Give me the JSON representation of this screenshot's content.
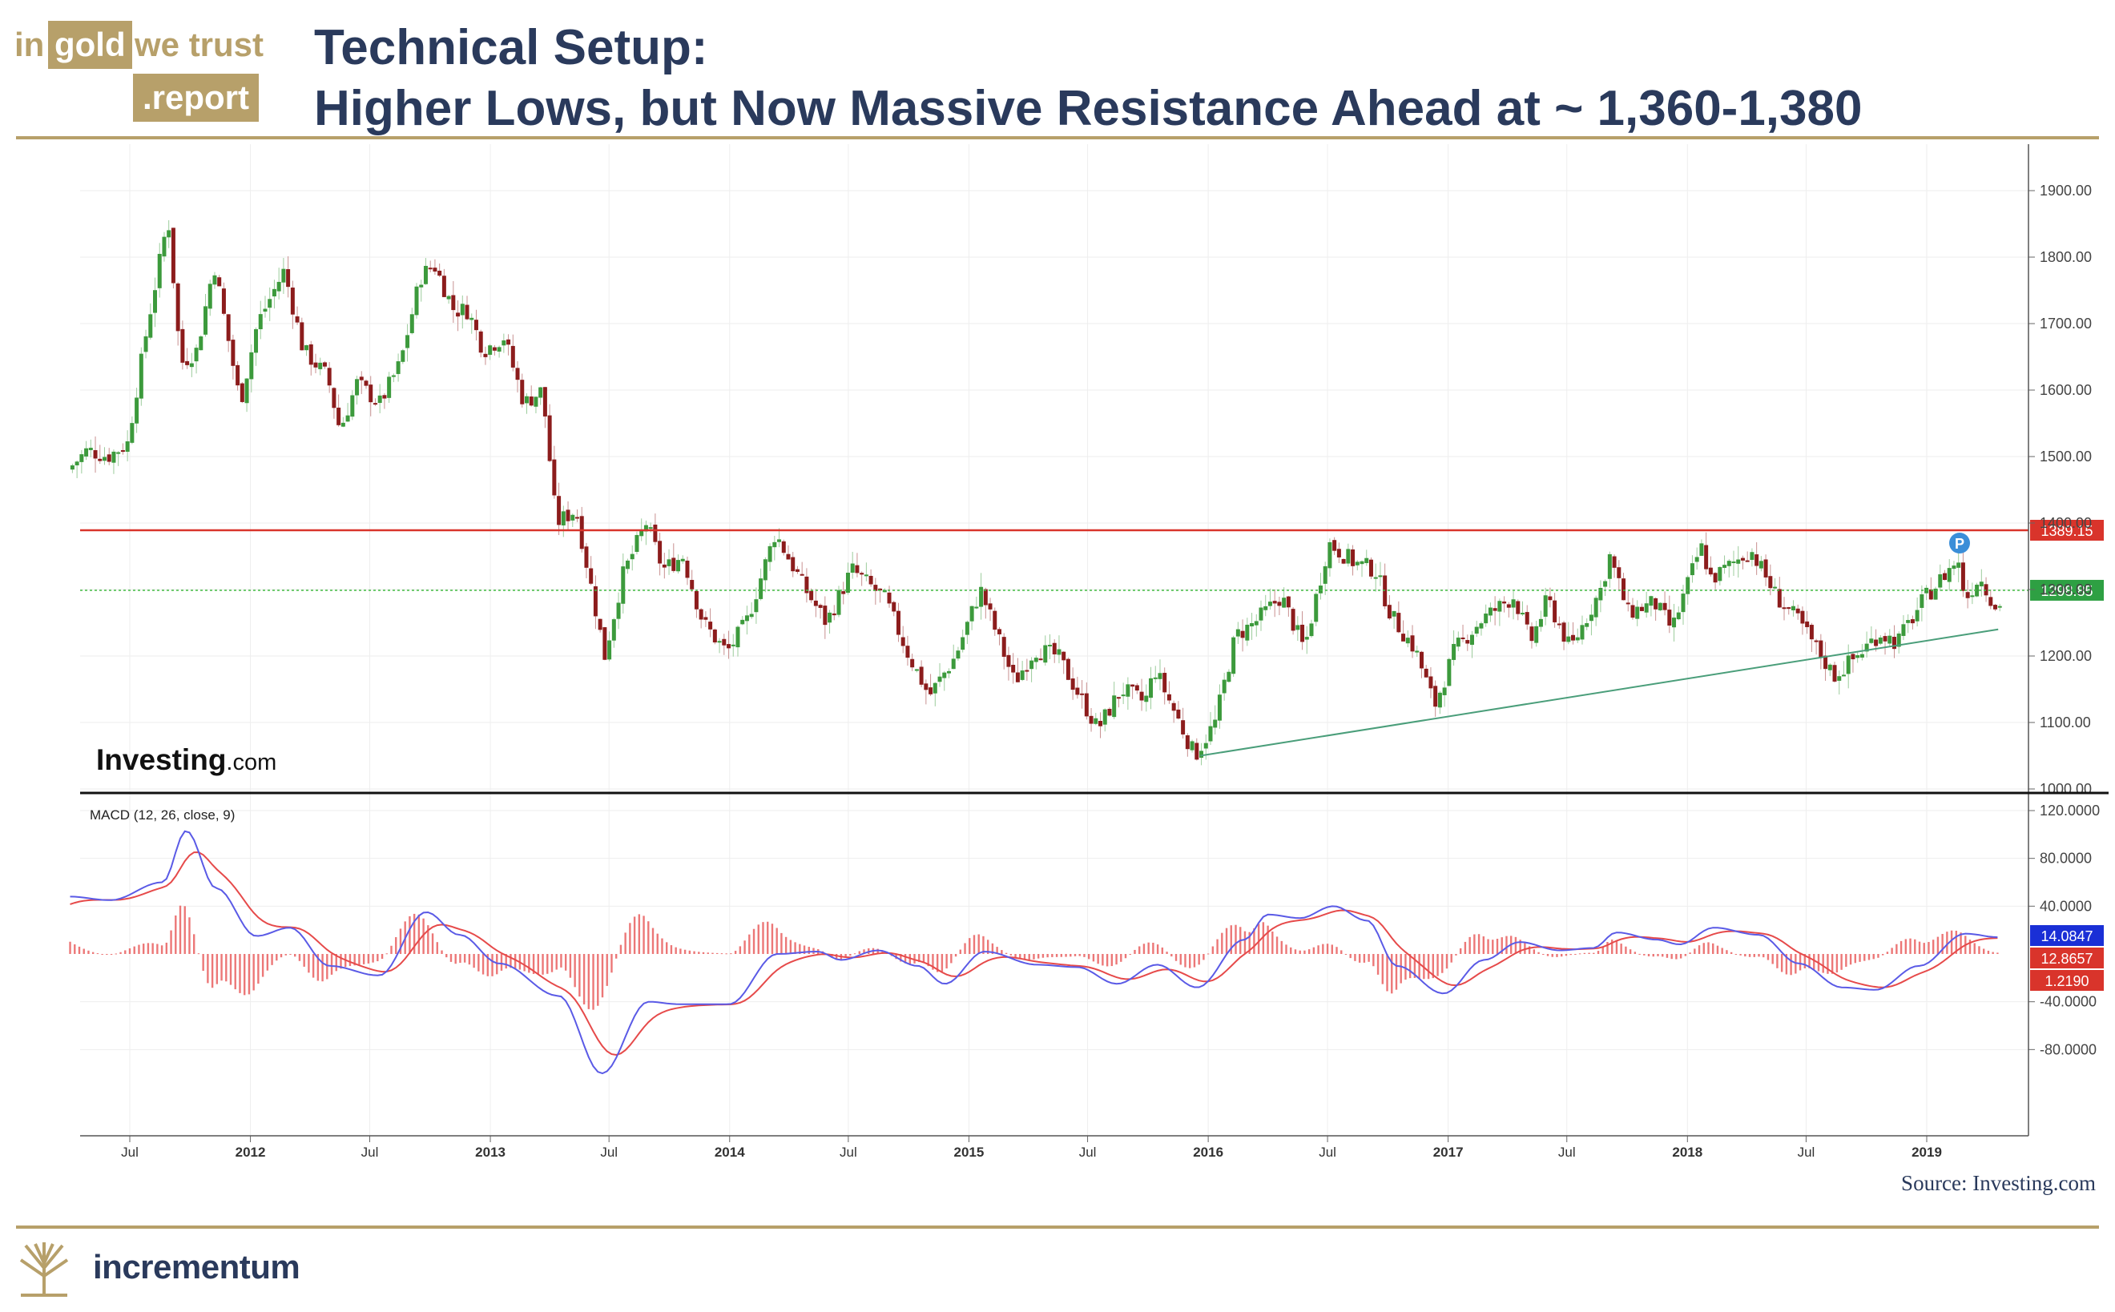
{
  "header": {
    "logo_in": "in",
    "logo_gold": "gold",
    "logo_we_trust": "we trust",
    "logo_report": ".report",
    "title_line1": "Technical Setup:",
    "title_line2": "Higher Lows, but Now Massive Resistance Ahead at ~ 1,360-1,380"
  },
  "footer": {
    "source": "Source: Investing.com",
    "brand": "incrementum"
  },
  "watermark": {
    "big": "Investing",
    "small": ".com"
  },
  "colors": {
    "brand_gold": "#b7a06a",
    "title_navy": "#2a3a5c",
    "candle_up": "#3c9a3c",
    "candle_down": "#8c1c1c",
    "resistance": "#d9342b",
    "support_dotted": "#44bb44",
    "trendline": "#4a9e7a",
    "macd_line": "#5a5ae6",
    "signal_line": "#e64a4a",
    "histogram": "#e64a4a"
  },
  "chart_data": {
    "type": "line",
    "subtype": "weekly candlestick with MACD study",
    "x_axis": {
      "ticks": [
        "Jul",
        "2012",
        "Jul",
        "2013",
        "Jul",
        "2014",
        "Jul",
        "2015",
        "Jul",
        "2016",
        "Jul",
        "2017",
        "Jul",
        "2018",
        "Jul",
        "2019"
      ],
      "start_date": "2011-04-01",
      "end_date": "2019-04-20"
    },
    "price_axis": {
      "ticks": [
        "1900.00",
        "1800.00",
        "1700.00",
        "1600.00",
        "1500.00",
        "1400.00",
        "1300.00",
        "1200.00",
        "1100.00",
        "1000.00"
      ],
      "ylim": [
        1000,
        1920
      ]
    },
    "price_series_anchors": [
      [
        "2011-04-01",
        1480
      ],
      [
        "2011-05-01",
        1510
      ],
      [
        "2011-06-01",
        1500
      ],
      [
        "2011-07-01",
        1520
      ],
      [
        "2011-08-01",
        1700
      ],
      [
        "2011-09-01",
        1860
      ],
      [
        "2011-09-20",
        1640
      ],
      [
        "2011-10-15",
        1660
      ],
      [
        "2011-11-10",
        1790
      ],
      [
        "2011-12-20",
        1580
      ],
      [
        "2012-01-15",
        1700
      ],
      [
        "2012-02-25",
        1780
      ],
      [
        "2012-03-25",
        1660
      ],
      [
        "2012-05-01",
        1620
      ],
      [
        "2012-05-20",
        1540
      ],
      [
        "2012-06-15",
        1610
      ],
      [
        "2012-07-20",
        1580
      ],
      [
        "2012-08-20",
        1640
      ],
      [
        "2012-09-20",
        1770
      ],
      [
        "2012-10-10",
        1790
      ],
      [
        "2012-11-10",
        1720
      ],
      [
        "2012-12-01",
        1720
      ],
      [
        "2012-12-25",
        1660
      ],
      [
        "2013-01-25",
        1680
      ],
      [
        "2013-02-25",
        1580
      ],
      [
        "2013-03-25",
        1600
      ],
      [
        "2013-04-15",
        1400
      ],
      [
        "2013-05-15",
        1420
      ],
      [
        "2013-06-28",
        1200
      ],
      [
        "2013-07-25",
        1320
      ],
      [
        "2013-08-30",
        1400
      ],
      [
        "2013-09-25",
        1330
      ],
      [
        "2013-10-25",
        1350
      ],
      [
        "2013-11-25",
        1250
      ],
      [
        "2013-12-31",
        1205
      ],
      [
        "2014-01-30",
        1250
      ],
      [
        "2014-03-15",
        1385
      ],
      [
        "2014-04-30",
        1300
      ],
      [
        "2014-06-01",
        1250
      ],
      [
        "2014-07-10",
        1330
      ],
      [
        "2014-08-30",
        1285
      ],
      [
        "2014-10-05",
        1200
      ],
      [
        "2014-11-05",
        1140
      ],
      [
        "2014-12-15",
        1200
      ],
      [
        "2015-01-22",
        1300
      ],
      [
        "2015-03-15",
        1160
      ],
      [
        "2015-04-15",
        1210
      ],
      [
        "2015-05-20",
        1200
      ],
      [
        "2015-07-20",
        1090
      ],
      [
        "2015-08-25",
        1150
      ],
      [
        "2015-09-30",
        1130
      ],
      [
        "2015-10-15",
        1180
      ],
      [
        "2015-12-15",
        1050
      ],
      [
        "2016-01-15",
        1100
      ],
      [
        "2016-02-15",
        1230
      ],
      [
        "2016-03-15",
        1250
      ],
      [
        "2016-04-25",
        1290
      ],
      [
        "2016-05-30",
        1210
      ],
      [
        "2016-07-06",
        1370
      ],
      [
        "2016-08-15",
        1340
      ],
      [
        "2016-09-15",
        1330
      ],
      [
        "2016-10-10",
        1260
      ],
      [
        "2016-11-15",
        1210
      ],
      [
        "2016-12-15",
        1125
      ],
      [
        "2017-01-15",
        1210
      ],
      [
        "2017-02-25",
        1255
      ],
      [
        "2017-04-15",
        1290
      ],
      [
        "2017-05-10",
        1220
      ],
      [
        "2017-06-05",
        1285
      ],
      [
        "2017-07-10",
        1210
      ],
      [
        "2017-08-25",
        1300
      ],
      [
        "2017-09-08",
        1350
      ],
      [
        "2017-10-06",
        1265
      ],
      [
        "2017-11-15",
        1280
      ],
      [
        "2017-12-12",
        1240
      ],
      [
        "2018-01-25",
        1365
      ],
      [
        "2018-02-10",
        1315
      ],
      [
        "2018-04-11",
        1360
      ],
      [
        "2018-05-20",
        1290
      ],
      [
        "2018-06-25",
        1250
      ],
      [
        "2018-08-16",
        1170
      ],
      [
        "2018-09-20",
        1200
      ],
      [
        "2018-10-25",
        1235
      ],
      [
        "2018-11-20",
        1220
      ],
      [
        "2018-12-31",
        1285
      ],
      [
        "2019-02-20",
        1345
      ],
      [
        "2019-03-05",
        1285
      ],
      [
        "2019-03-25",
        1320
      ],
      [
        "2019-04-20",
        1275
      ]
    ],
    "resistance_level": {
      "value": 1389.15,
      "label": "1389.15"
    },
    "current_level": {
      "value": 1298.85,
      "label": "1298.85"
    },
    "support_trendline": {
      "start": [
        "2015-12-20",
        1050
      ],
      "end": [
        "2019-04-20",
        1240
      ]
    },
    "macd": {
      "label": "MACD (12, 26, close, 9)",
      "axis_ticks": [
        "120.0000",
        "80.0000",
        "40.0000",
        "-40.0000",
        "-80.0000"
      ],
      "ylim": [
        -112,
        120
      ],
      "macd_anchors": [
        [
          "2011-04-01",
          48
        ],
        [
          "2011-06-01",
          45
        ],
        [
          "2011-08-20",
          60
        ],
        [
          "2011-09-25",
          103
        ],
        [
          "2011-11-10",
          55
        ],
        [
          "2012-01-10",
          15
        ],
        [
          "2012-03-01",
          22
        ],
        [
          "2012-05-01",
          -10
        ],
        [
          "2012-07-15",
          -18
        ],
        [
          "2012-09-25",
          35
        ],
        [
          "2012-11-15",
          16
        ],
        [
          "2013-01-15",
          -8
        ],
        [
          "2013-04-15",
          -35
        ],
        [
          "2013-06-20",
          -100
        ],
        [
          "2013-08-30",
          -40
        ],
        [
          "2013-10-15",
          -42
        ],
        [
          "2013-12-31",
          -42
        ],
        [
          "2014-03-15",
          0
        ],
        [
          "2014-05-15",
          2
        ],
        [
          "2014-06-20",
          -5
        ],
        [
          "2014-08-15",
          3
        ],
        [
          "2014-10-15",
          -10
        ],
        [
          "2014-11-25",
          -25
        ],
        [
          "2015-01-25",
          2
        ],
        [
          "2015-04-15",
          -9
        ],
        [
          "2015-06-15",
          -11
        ],
        [
          "2015-08-15",
          -25
        ],
        [
          "2015-10-15",
          -9
        ],
        [
          "2015-12-15",
          -28
        ],
        [
          "2016-02-25",
          12
        ],
        [
          "2016-04-01",
          33
        ],
        [
          "2016-05-20",
          30
        ],
        [
          "2016-07-10",
          40
        ],
        [
          "2016-08-30",
          28
        ],
        [
          "2016-10-15",
          -10
        ],
        [
          "2016-12-25",
          -33
        ],
        [
          "2017-02-25",
          -5
        ],
        [
          "2017-04-20",
          10
        ],
        [
          "2017-06-20",
          3
        ],
        [
          "2017-08-10",
          5
        ],
        [
          "2017-09-15",
          18
        ],
        [
          "2017-11-15",
          12
        ],
        [
          "2017-12-20",
          8
        ],
        [
          "2018-02-10",
          22
        ],
        [
          "2018-04-20",
          16
        ],
        [
          "2018-06-20",
          -8
        ],
        [
          "2018-08-25",
          -28
        ],
        [
          "2018-10-15",
          -30
        ],
        [
          "2018-12-20",
          -10
        ],
        [
          "2019-03-01",
          17
        ],
        [
          "2019-04-20",
          14
        ]
      ],
      "current_values": {
        "macd": "14.0847",
        "signal": "12.8657",
        "histogram": "1.2190"
      }
    }
  }
}
